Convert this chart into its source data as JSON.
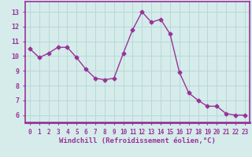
{
  "x": [
    0,
    1,
    2,
    3,
    4,
    5,
    6,
    7,
    8,
    9,
    10,
    11,
    12,
    13,
    14,
    15,
    16,
    17,
    18,
    19,
    20,
    21,
    22,
    23
  ],
  "y": [
    10.5,
    9.9,
    10.2,
    10.6,
    10.6,
    9.9,
    9.1,
    8.5,
    8.4,
    8.5,
    10.2,
    11.8,
    13.0,
    12.3,
    12.5,
    11.5,
    8.9,
    7.5,
    7.0,
    6.6,
    6.6,
    6.1,
    6.0,
    6.0
  ],
  "line_color": "#993399",
  "marker": "D",
  "markersize": 2.5,
  "linewidth": 1.0,
  "xlabel": "Windchill (Refroidissement éolien,°C)",
  "xlabel_fontsize": 6.5,
  "xtick_labels": [
    "0",
    "1",
    "2",
    "3",
    "4",
    "5",
    "6",
    "7",
    "8",
    "9",
    "10",
    "11",
    "12",
    "13",
    "14",
    "15",
    "16",
    "17",
    "18",
    "19",
    "20",
    "21",
    "22",
    "23"
  ],
  "ytick_values": [
    6,
    7,
    8,
    9,
    10,
    11,
    12,
    13
  ],
  "ylim": [
    5.5,
    13.7
  ],
  "xlim": [
    -0.5,
    23.5
  ],
  "bg_color": "#d5ecea",
  "grid_color": "#b8d8d8",
  "spine_color": "#993399",
  "tick_color": "#993399",
  "label_color": "#993399",
  "xtick_fontsize": 5.5,
  "ytick_fontsize": 6.0
}
